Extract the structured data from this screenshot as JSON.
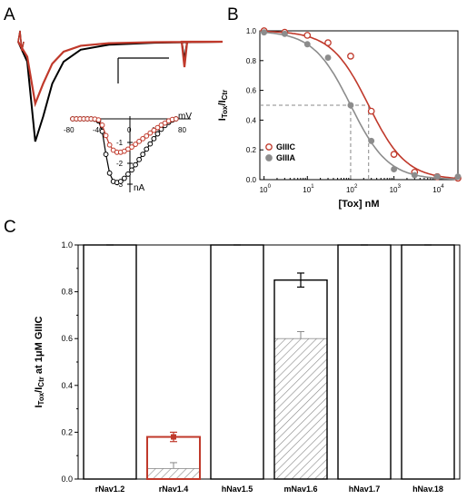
{
  "panels": {
    "a": {
      "letter": "A",
      "inset": {
        "x_unit": "mV",
        "y_unit": "nA",
        "x_ticks": [
          "-80",
          "-40",
          "0",
          "40",
          "80"
        ],
        "y_ticks": [
          "-1",
          "-2",
          "-3"
        ]
      }
    },
    "b": {
      "letter": "B"
    },
    "c": {
      "letter": "C"
    }
  },
  "chart_data": [
    {
      "panel": "A",
      "type": "line",
      "description_of_traces": "sodium current traces (black control, red toxin)",
      "series": [
        {
          "name": "",
          "color": "#000000",
          "x": [
            0,
            8,
            15,
            22,
            30,
            40,
            55,
            80,
            120,
            180
          ],
          "y": [
            0,
            -0.2,
            -1.0,
            -0.75,
            -0.42,
            -0.2,
            -0.08,
            -0.03,
            -0.01,
            0
          ]
        },
        {
          "name": "",
          "color": "#c0392b",
          "x": [
            0,
            8,
            15,
            22,
            30,
            40,
            55,
            80,
            120,
            180
          ],
          "y": [
            0,
            -0.15,
            -0.62,
            -0.42,
            -0.22,
            -0.1,
            -0.04,
            -0.015,
            -0.005,
            0
          ]
        }
      ]
    },
    {
      "panel": "A-inset",
      "type": "line",
      "xlabel": "mV",
      "ylabel": "nA",
      "xlim": [
        -80,
        80
      ],
      "ylim": [
        -3.4,
        0.3
      ],
      "series": [
        {
          "name": "",
          "color": "#000000",
          "x": [
            -80,
            -75,
            -70,
            -65,
            -60,
            -55,
            -50,
            -45,
            -40,
            -35,
            -30,
            -25,
            -20,
            -15,
            -10,
            -5,
            0,
            5,
            10,
            15,
            20,
            25,
            30,
            35,
            40,
            45,
            50,
            55,
            60
          ],
          "y": [
            0,
            0,
            0,
            0,
            0,
            0,
            -0.02,
            -0.1,
            -0.6,
            -1.7,
            -2.6,
            -3.0,
            -3.05,
            -3.0,
            -2.85,
            -2.65,
            -2.45,
            -2.2,
            -1.95,
            -1.7,
            -1.45,
            -1.2,
            -0.95,
            -0.72,
            -0.5,
            -0.32,
            -0.17,
            -0.06,
            0
          ]
        },
        {
          "name": "",
          "color": "#c0392b",
          "x": [
            -80,
            -75,
            -70,
            -65,
            -60,
            -55,
            -50,
            -45,
            -40,
            -35,
            -30,
            -25,
            -20,
            -15,
            -10,
            -5,
            0,
            5,
            10,
            15,
            20,
            25,
            30,
            35,
            40,
            45,
            50,
            55,
            60
          ],
          "y": [
            0,
            0,
            0,
            0,
            0,
            0,
            -0.01,
            -0.05,
            -0.3,
            -0.8,
            -1.25,
            -1.5,
            -1.6,
            -1.6,
            -1.55,
            -1.45,
            -1.35,
            -1.22,
            -1.08,
            -0.95,
            -0.82,
            -0.68,
            -0.55,
            -0.42,
            -0.3,
            -0.2,
            -0.1,
            -0.03,
            0
          ]
        }
      ]
    },
    {
      "panel": "B",
      "type": "line",
      "xlabel": "[Tox] nM",
      "ylabel": "ITox/ICtr",
      "xscale": "log",
      "xlim": [
        0.8,
        30000
      ],
      "ylim": [
        0,
        1.0
      ],
      "y_ticks": [
        "0.0",
        "0.2",
        "0.4",
        "0.6",
        "0.8",
        "1.0"
      ],
      "x_ticks": [
        "10",
        "10",
        "10",
        "10",
        "10"
      ],
      "x_tick_exponents": [
        "0",
        "1",
        "2",
        "3",
        "4"
      ],
      "legend_position": "bottom-left",
      "ic50_reference": {
        "y": 0.5,
        "x": [
          100,
          260
        ]
      },
      "series": [
        {
          "name": "GIIIC",
          "color": "#c0392b",
          "marker": "open-circle",
          "x": [
            1,
            3,
            10,
            30,
            100,
            300,
            1000,
            3000,
            10000,
            30000
          ],
          "y": [
            1.0,
            0.99,
            0.97,
            0.92,
            0.83,
            0.46,
            0.17,
            0.05,
            0.02,
            0.01
          ],
          "fit_ic50": 260,
          "fit_hill": 1.0
        },
        {
          "name": "GIIIA",
          "color": "#8c8c8c",
          "marker": "filled-circle",
          "x": [
            1,
            3,
            10,
            30,
            100,
            300,
            1000,
            3000,
            10000,
            30000
          ],
          "y": [
            0.99,
            0.98,
            0.91,
            0.82,
            0.5,
            0.26,
            0.07,
            0.03,
            0.02,
            0.02
          ],
          "fit_ic50": 100,
          "fit_hill": 1.0
        }
      ]
    },
    {
      "panel": "C",
      "type": "bar",
      "ylabel": "ITox/ICtr at 1μM GIIIC",
      "ylim": [
        0,
        1.0
      ],
      "y_ticks": [
        "0.0",
        "0.2",
        "0.4",
        "0.6",
        "0.8",
        "1.0"
      ],
      "categories": [
        "rNav1.2",
        "rNav1.4",
        "hNav1.5",
        "mNav1.6",
        "hNav1.7",
        "hNav.18"
      ],
      "values": [
        1.0,
        0.18,
        1.0,
        0.85,
        1.0,
        1.0
      ],
      "errors": [
        0.0,
        0.02,
        0.0,
        0.03,
        0.0,
        0.0
      ],
      "bar_colors": [
        "#000000",
        "#c0392b",
        "#000000",
        "#000000",
        "#000000",
        "#000000"
      ],
      "hatched_values": [
        null,
        0.045,
        null,
        0.6,
        null,
        null
      ],
      "hatched_errors": [
        null,
        0.025,
        null,
        0.03,
        null,
        null
      ]
    }
  ]
}
